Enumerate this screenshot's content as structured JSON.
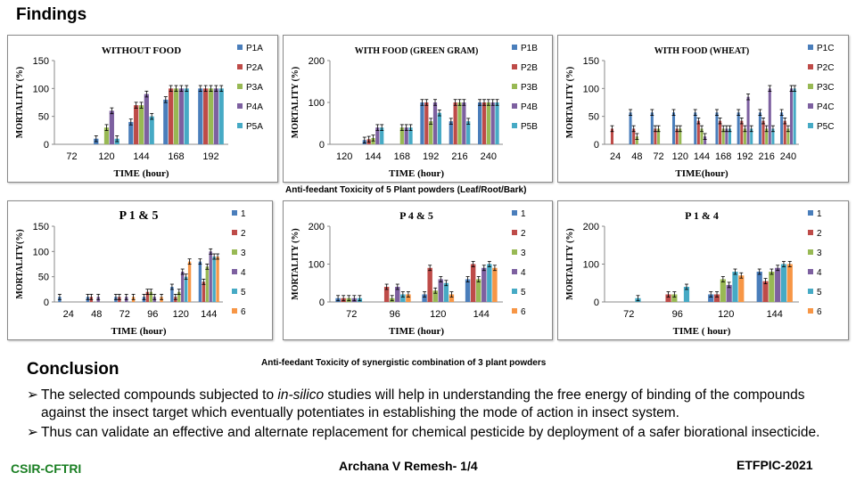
{
  "slide": {
    "heading": "Findings",
    "caption1": "Anti-feedant Toxicity of 5 Plant powders (Leaf/Root/Bark)",
    "caption2": "Anti-feedant Toxicity of synergistic combination of 3 plant powders",
    "conclusion_heading": "Conclusion",
    "bullets": [
      {
        "arrow": "➢",
        "pre": "The selected compounds  subjected to ",
        "em": "in-silico",
        "post": " studies will help in understanding  the free energy of binding of the compounds against the insect target which eventually potentiates in establishing the mode of action in insect system."
      },
      {
        "arrow": "➢",
        "pre": "Thus can validate an effective  and alternate replacement for chemical pesticide by deployment of a safer biorational insecticide.",
        "em": "",
        "post": ""
      }
    ],
    "footer_left": "CSIR-CFTRI",
    "footer_center": "Archana V Remesh- 1/4",
    "footer_right": "ETFPIC-2021"
  },
  "colors": [
    "#4a7ebb",
    "#be4b48",
    "#98b954",
    "#7d60a0",
    "#46aac5",
    "#f79646"
  ],
  "chart_data": [
    {
      "type": "bar",
      "title": "WITHOUT FOOD",
      "title_size": 11,
      "ylabel": "MORTALITY (%)",
      "xlabel": "TIME  (hour)",
      "ylim": [
        0,
        150
      ],
      "yticks": [
        0,
        50,
        100,
        150
      ],
      "categories": [
        "72",
        "120",
        "144",
        "168",
        "192"
      ],
      "series": [
        {
          "name": "P1A",
          "values": [
            0,
            10,
            40,
            80,
            100
          ]
        },
        {
          "name": "P2A",
          "values": [
            0,
            0,
            70,
            100,
            100
          ]
        },
        {
          "name": "P3A",
          "values": [
            0,
            30,
            70,
            100,
            100
          ]
        },
        {
          "name": "P4A",
          "values": [
            0,
            60,
            90,
            100,
            100
          ]
        },
        {
          "name": "P5A",
          "values": [
            0,
            10,
            50,
            100,
            100
          ]
        }
      ]
    },
    {
      "type": "bar",
      "title": "WITH FOOD (GREEN GRAM)",
      "title_size": 10,
      "ylabel": "MORTALITY  (%)",
      "xlabel": "TIME  (hour)",
      "ylim": [
        0,
        200
      ],
      "yticks": [
        0,
        100,
        200
      ],
      "categories": [
        "120",
        "144",
        "168",
        "192",
        "216",
        "240"
      ],
      "series": [
        {
          "name": "P1B",
          "values": [
            0,
            10,
            0,
            100,
            55,
            100
          ]
        },
        {
          "name": "P2B",
          "values": [
            0,
            12,
            0,
            100,
            100,
            100
          ]
        },
        {
          "name": "P3B",
          "values": [
            0,
            15,
            40,
            55,
            100,
            100
          ]
        },
        {
          "name": "P4B",
          "values": [
            0,
            40,
            40,
            100,
            100,
            100
          ]
        },
        {
          "name": "P5B",
          "values": [
            0,
            40,
            40,
            75,
            55,
            100
          ]
        }
      ]
    },
    {
      "type": "bar",
      "title": "WITH FOOD (WHEAT)",
      "title_size": 10,
      "ylabel": "MORTALITY (%)",
      "xlabel": "TIME(hour)",
      "ylim": [
        0,
        150
      ],
      "yticks": [
        0,
        50,
        100,
        150
      ],
      "categories": [
        "24",
        "48",
        "72",
        "120",
        "144",
        "168",
        "192",
        "216",
        "240"
      ],
      "series": [
        {
          "name": "P1C",
          "values": [
            0,
            57,
            57,
            57,
            57,
            57,
            57,
            57,
            57
          ]
        },
        {
          "name": "P2C",
          "values": [
            28,
            28,
            28,
            28,
            42,
            42,
            42,
            42,
            42
          ]
        },
        {
          "name": "P3C",
          "values": [
            0,
            14,
            28,
            28,
            28,
            28,
            28,
            28,
            28
          ]
        },
        {
          "name": "P4C",
          "values": [
            0,
            0,
            0,
            0,
            14,
            28,
            85,
            100,
            100
          ]
        },
        {
          "name": "P5C",
          "values": [
            0,
            0,
            0,
            0,
            0,
            28,
            28,
            28,
            100
          ]
        }
      ]
    },
    {
      "type": "bar",
      "title": "P 1 & 5",
      "title_size": 14,
      "ylabel": "MORTALITY(%)",
      "xlabel": "TIME  (hour)",
      "ylim": [
        0,
        150
      ],
      "yticks": [
        0,
        50,
        100,
        150
      ],
      "categories": [
        "24",
        "48",
        "72",
        "96",
        "120",
        "144"
      ],
      "series": [
        {
          "name": "1",
          "values": [
            10,
            10,
            10,
            10,
            30,
            80
          ]
        },
        {
          "name": "2",
          "values": [
            0,
            10,
            10,
            20,
            10,
            40
          ]
        },
        {
          "name": "3",
          "values": [
            0,
            0,
            0,
            20,
            20,
            70
          ]
        },
        {
          "name": "4",
          "values": [
            0,
            10,
            10,
            10,
            60,
            100
          ]
        },
        {
          "name": "5",
          "values": [
            0,
            0,
            0,
            0,
            50,
            90
          ]
        },
        {
          "name": "6",
          "values": [
            0,
            0,
            10,
            10,
            80,
            90
          ]
        }
      ]
    },
    {
      "type": "bar",
      "title": "P 4 & 5",
      "title_size": 12,
      "ylabel": "MORTALITY (%)",
      "xlabel": "TIME (hour)",
      "ylim": [
        0,
        200
      ],
      "yticks": [
        0,
        100,
        200
      ],
      "categories": [
        "72",
        "96",
        "120",
        "144"
      ],
      "series": [
        {
          "name": "1",
          "values": [
            10,
            0,
            20,
            60
          ]
        },
        {
          "name": "2",
          "values": [
            10,
            40,
            90,
            100
          ]
        },
        {
          "name": "3",
          "values": [
            10,
            10,
            30,
            60
          ]
        },
        {
          "name": "4",
          "values": [
            10,
            40,
            60,
            90
          ]
        },
        {
          "name": "5",
          "values": [
            10,
            20,
            50,
            100
          ]
        },
        {
          "name": "6",
          "values": [
            0,
            20,
            20,
            90
          ]
        }
      ]
    },
    {
      "type": "bar",
      "title": "P 1 & 4",
      "title_size": 12,
      "ylabel": "MORTALITY (%)",
      "xlabel": "TIME   ( hour)",
      "ylim": [
        0,
        200
      ],
      "yticks": [
        0,
        100,
        200
      ],
      "categories": [
        "72",
        "96",
        "120",
        "144"
      ],
      "series": [
        {
          "name": "1",
          "values": [
            0,
            0,
            20,
            80
          ]
        },
        {
          "name": "2",
          "values": [
            0,
            20,
            20,
            55
          ]
        },
        {
          "name": "3",
          "values": [
            0,
            20,
            60,
            80
          ]
        },
        {
          "name": "4",
          "values": [
            0,
            0,
            45,
            90
          ]
        },
        {
          "name": "5",
          "values": [
            10,
            40,
            80,
            100
          ]
        },
        {
          "name": "6",
          "values": [
            0,
            0,
            70,
            100
          ]
        }
      ]
    }
  ]
}
